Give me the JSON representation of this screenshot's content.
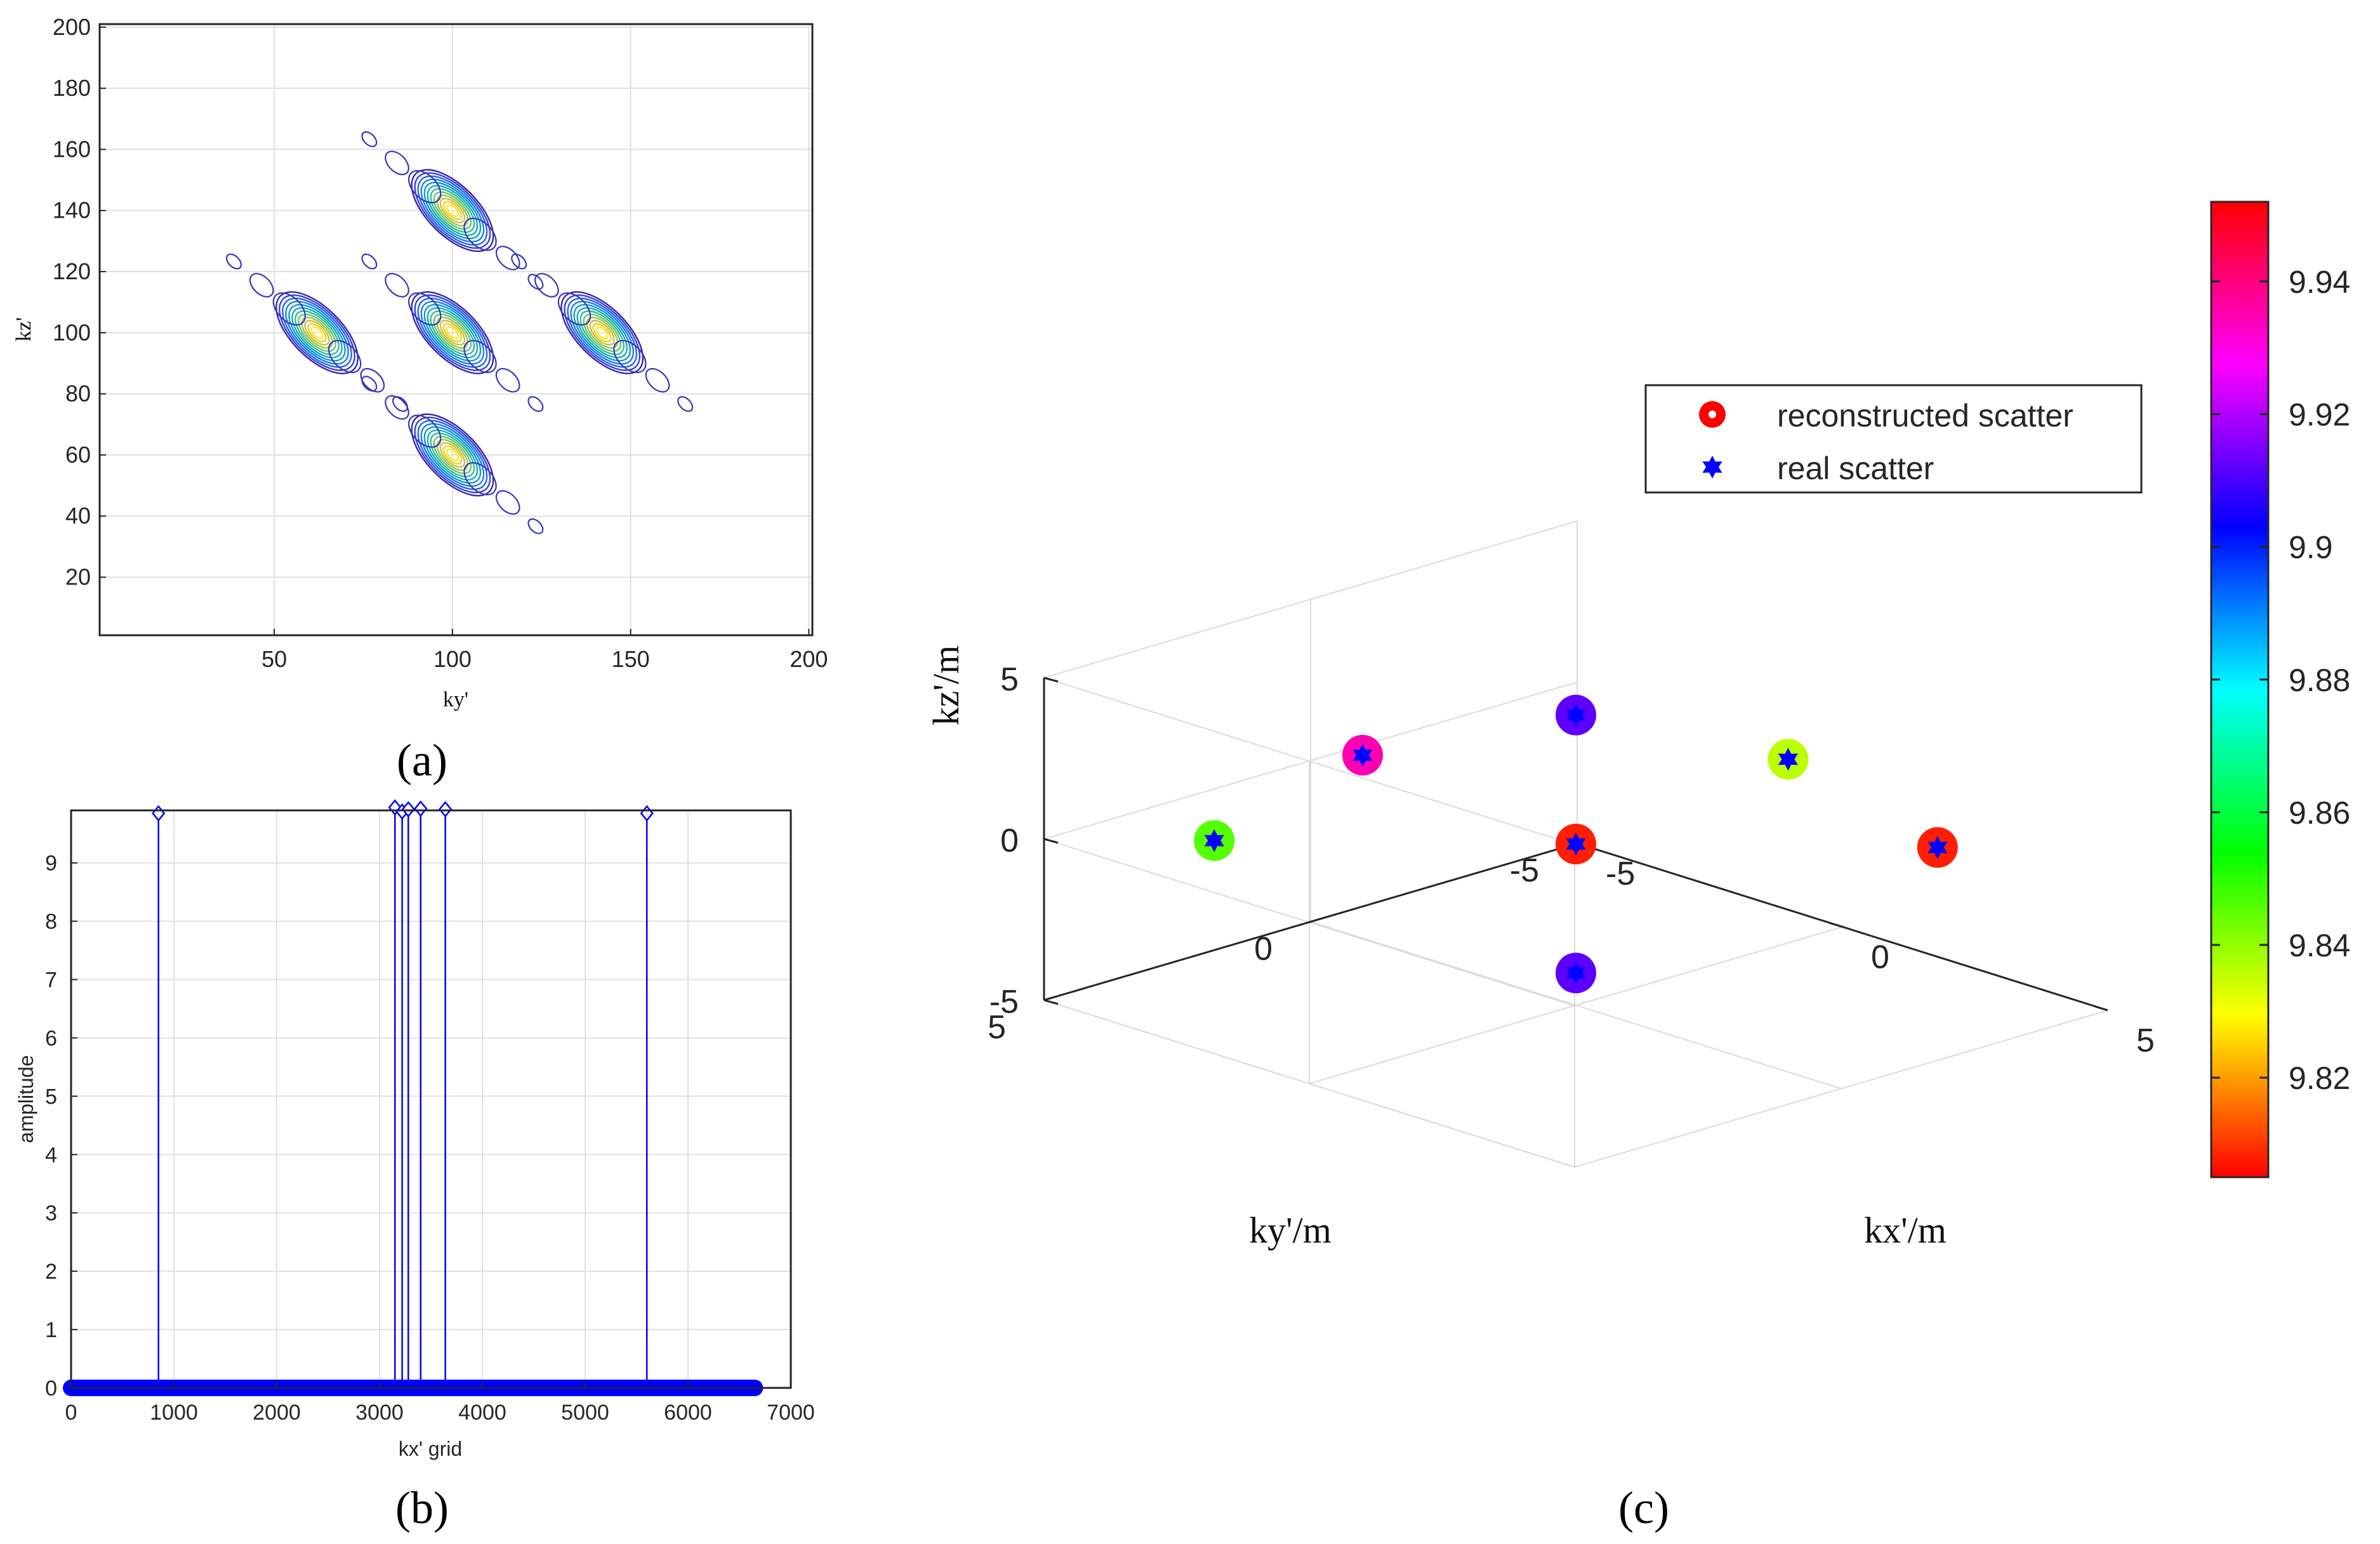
{
  "panels": {
    "a_label": "(a)",
    "b_label": "(b)",
    "c_label": "(c)"
  },
  "chart_data": [
    {
      "id": "a",
      "type": "contour",
      "xlabel": "ky'",
      "ylabel": "kz'",
      "xlim": [
        1,
        201
      ],
      "ylim": [
        1,
        201
      ],
      "xticks": [
        50,
        100,
        150,
        200
      ],
      "yticks": [
        20,
        40,
        60,
        80,
        100,
        120,
        140,
        160,
        180,
        200
      ],
      "grid": true,
      "peaks": [
        {
          "x": 62,
          "y": 100
        },
        {
          "x": 100,
          "y": 100
        },
        {
          "x": 142,
          "y": 100
        },
        {
          "x": 100,
          "y": 140
        },
        {
          "x": 100,
          "y": 60
        }
      ]
    },
    {
      "id": "b",
      "type": "stem",
      "xlabel": "kx' grid",
      "ylabel": "amplitude",
      "xlim": [
        0,
        7000
      ],
      "ylim": [
        0,
        9.9
      ],
      "xticks": [
        0,
        1000,
        2000,
        3000,
        4000,
        5000,
        6000,
        7000
      ],
      "yticks": [
        0,
        1,
        2,
        3,
        4,
        5,
        6,
        7,
        8,
        9
      ],
      "grid": true,
      "baseline_range": [
        0,
        6650
      ],
      "stems": [
        {
          "x": 850,
          "y": 9.85
        },
        {
          "x": 3150,
          "y": 9.95
        },
        {
          "x": 3220,
          "y": 9.88
        },
        {
          "x": 3280,
          "y": 9.92
        },
        {
          "x": 3400,
          "y": 9.93
        },
        {
          "x": 3640,
          "y": 9.92
        },
        {
          "x": 5600,
          "y": 9.85
        }
      ]
    },
    {
      "id": "c",
      "type": "scatter3d",
      "xlabel": "kx'/m",
      "ylabel": "ky'/m",
      "zlabel": "kz'/m",
      "xlim": [
        -5,
        5
      ],
      "ylim": [
        -5,
        5
      ],
      "zlim": [
        -5,
        5
      ],
      "xticks": [
        -5,
        0,
        5
      ],
      "yticks": [
        -5,
        0,
        5
      ],
      "zticks": [
        -5,
        0,
        5
      ],
      "grid": true,
      "legend": {
        "position": "top-right",
        "entries": [
          "reconstructed scatter",
          "real scatter"
        ]
      },
      "colorbar": {
        "min": 9.805,
        "max": 9.952,
        "ticks": [
          9.82,
          9.84,
          9.86,
          9.88,
          9.9,
          9.92,
          9.94
        ],
        "tick_labels": [
          "9.82",
          "9.84",
          "9.86",
          "9.88",
          "9.9",
          "9.92",
          "9.94"
        ]
      },
      "points": [
        {
          "x": 0,
          "y": 0,
          "z": 4,
          "value": 9.912
        },
        {
          "x": 0,
          "y": 0,
          "z": -4,
          "value": 9.912
        },
        {
          "x": 0,
          "y": 0,
          "z": 0,
          "value": 9.808
        },
        {
          "x": 3.4,
          "y": -3.4,
          "z": 0,
          "value": 9.808
        },
        {
          "x": -3.4,
          "y": 3.4,
          "z": 0,
          "value": 9.846
        },
        {
          "x": 0,
          "y": 4,
          "z": 4.7,
          "value": 9.935
        },
        {
          "x": 4,
          "y": 0,
          "z": 4.7,
          "value": 9.836
        }
      ]
    }
  ]
}
